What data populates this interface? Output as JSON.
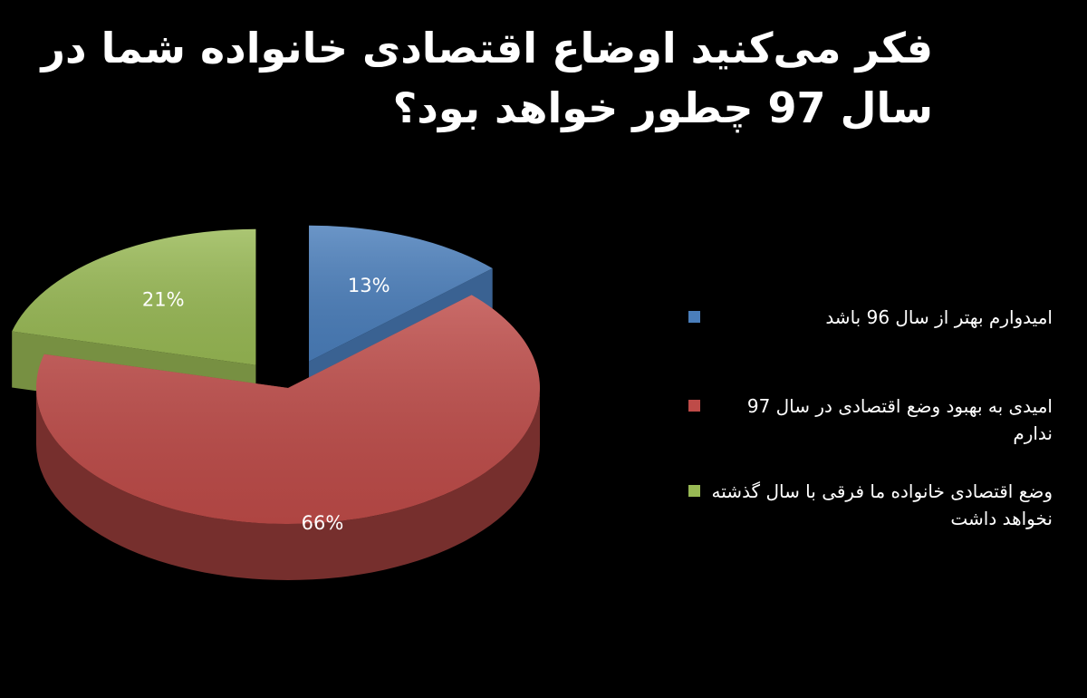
{
  "title": "فکر می‌کنید اوضاع اقتصادی خانواده شما در سال 97 چطور خواهد بود؟",
  "chart_data": {
    "type": "pie",
    "title": "فکر می‌کنید اوضاع اقتصادی خانواده شما در سال 97 چطور خواهد بود؟",
    "slices": [
      {
        "label": "امیدوارم بهتر از سال 96 باشد",
        "value": 13,
        "display": "13%",
        "color": "#4a7ebb",
        "exploded": true
      },
      {
        "label": "امیدی به بهبود وضع اقتصادی در سال 97 ندارم",
        "value": 66,
        "display": "66%",
        "color": "#be4b48",
        "exploded": false
      },
      {
        "label": "وضع اقتصادی خانواده ما فرقی با سال گذشته نخواهد داشت",
        "value": 21,
        "display": "21%",
        "color": "#98b954",
        "exploded": true
      }
    ],
    "legend_position": "right",
    "style": "3d"
  }
}
